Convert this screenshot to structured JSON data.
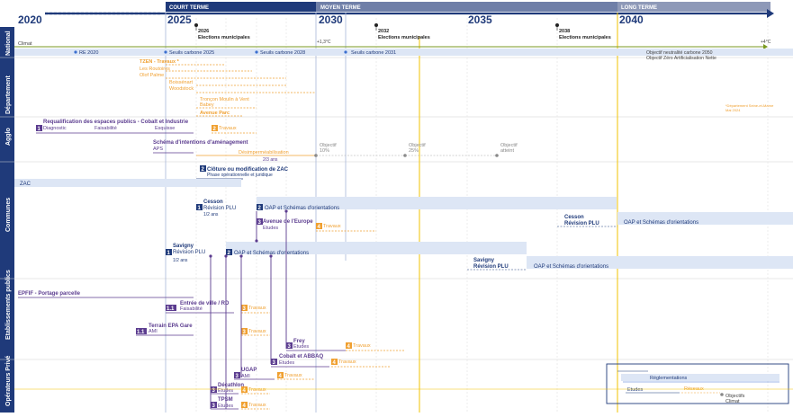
{
  "colors": {
    "navy": "#1f3a7a",
    "purple": "#5b3c8f",
    "orange": "#f0a030",
    "yellow": "#f2c300",
    "green": "#7a9a20",
    "gray": "#888888",
    "lightblue": "#dde6f5",
    "blue_line": "#3b6fd0"
  },
  "timeline": {
    "years": [
      {
        "label": "2020",
        "year": 2020
      },
      {
        "label": "2025",
        "year": 2025
      },
      {
        "label": "2030",
        "year": 2030
      },
      {
        "label": "2035",
        "year": 2035
      },
      {
        "label": "2040",
        "year": 2040
      }
    ],
    "phases": [
      {
        "label": "COURT TERME"
      },
      {
        "label": "MOYEN TERME"
      },
      {
        "label": "LONG TERME"
      }
    ],
    "elections": [
      {
        "year": "2026",
        "label": "Elections municipales"
      },
      {
        "year": "2032",
        "label": "Elections municipales"
      },
      {
        "year": "2038",
        "label": "Elections municipales"
      }
    ]
  },
  "rows": [
    {
      "label": "National"
    },
    {
      "label": "Département"
    },
    {
      "label": "Agglo"
    },
    {
      "label": "Communes"
    },
    {
      "label": "Etablissements publics"
    },
    {
      "label": "Opérateurs Privé"
    }
  ],
  "texts": {
    "climat": "Climat",
    "plus13": "+1,3°C",
    "plus4": "+4°C",
    "re2020": "RE 2020",
    "seuils2025": "Seuils carbone 2025",
    "seuils2028": "Seuils carbone 2028",
    "seuils2031": "Seuils carbone 2031",
    "objectif1": "Objectif neutralité carbone 2050",
    "objectif2": "Objectif Zéro Artificialisation Nette",
    "tzen": "TZEN - Travaux *",
    "routoires": "Les Routoires",
    "olof": "Olof Palme",
    "boissenart": "Boissénart",
    "woodstock": "Woodstock",
    "troncon": "Tronçon Moulin à Vent",
    "babey": "Babey",
    "avenue_parc": "Avenue Parc",
    "dept_note1": "*Département Seine-et-Marne",
    "dept_note2": "Mai 2024",
    "requal": "Requalification des espaces publics - Cobalt et Industrie",
    "diagnostic": "Diagnostic",
    "faisabilite": "Faisabilité",
    "esquisse": "Esquisse",
    "travaux": "Travaux",
    "schema": "Schéma d'intentions d'aménagement",
    "aps": "APS",
    "desimper": "Désimperméabilisation",
    "trois_ans": "2/3 ans",
    "obj10_a": "Objectif",
    "obj10_b": "10%",
    "obj25_a": "Objectif",
    "obj25_b": "25%",
    "objatt_a": "Objectif",
    "objatt_b": "atteint",
    "cloture": "Clôture ou modification de ZAC",
    "phase_op": "Phase opérationnelle et juridique",
    "un_deux_ans": "1/2 ans",
    "zac": "ZAC",
    "cesson": "Cesson",
    "revision_plu": "Révision PLU",
    "oap": "OAP et Schémas d'orientations",
    "avenue_europe": "Avenue de l'Europe",
    "etudes": "Etudes",
    "cesson2": "Cesson",
    "revision_plu2": "Révision PLU",
    "oap2": "OAP et Schémas d'orientations",
    "savigny": "Savigny",
    "revision_plu3": "Révision PLU",
    "oap3": "OAP et Schémas d'orientations",
    "savigny2": "Savigny",
    "revision_plu4": "Révision PLU",
    "oap4": "OAP et Schémas d'orientations",
    "epfif": "EPFIF - Portage parcelle",
    "entree_ville": "Entrée de ville / RD",
    "terrain_epa": "Terrain EPA Gare",
    "ami": "AMI",
    "frey": "Frey",
    "cobalt_abbaq": "Cobalt et ABBAQ",
    "ugap": "UGAP",
    "decathlon": "Décathlon",
    "tpsm": "TPSM",
    "reglementations": "Réglementations",
    "reseaux": "Réseaux",
    "objectifs_climat_a": "Objectifs",
    "objectifs_climat_b": "Climat"
  },
  "badges": {
    "b1": "1",
    "b2": "2",
    "b3": "3",
    "b4": "4",
    "b11": "1.1"
  }
}
